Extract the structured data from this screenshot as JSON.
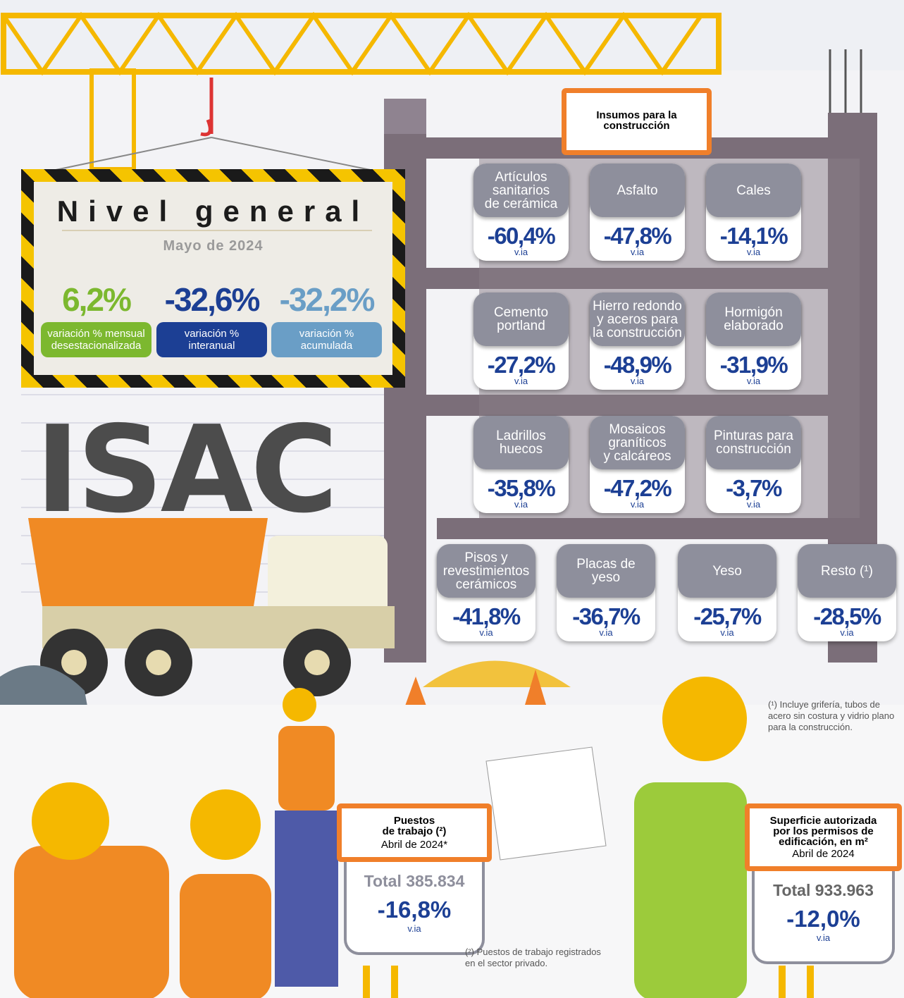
{
  "header": {
    "title": "Nivel general",
    "subtitle": "Mayo de 2024"
  },
  "indicators": [
    {
      "value": "6,2%",
      "label": [
        "variación % mensual",
        "desestacionalizada"
      ]
    },
    {
      "value": "-32,6%",
      "label": [
        "variación %",
        "interanual"
      ]
    },
    {
      "value": "-32,2%",
      "label": [
        "variación %",
        "acumulada"
      ]
    }
  ],
  "logo": "ISAC",
  "inputs": {
    "title": [
      "Insumos para la",
      "construcción"
    ],
    "items": [
      {
        "name": [
          "Artículos",
          "sanitarios",
          "de cerámica"
        ],
        "value": "-60,4%",
        "unit": "v.ia"
      },
      {
        "name": [
          "Asfalto"
        ],
        "value": "-47,8%",
        "unit": "v.ia"
      },
      {
        "name": [
          "Cales"
        ],
        "value": "-14,1%",
        "unit": "v.ia"
      },
      {
        "name": [
          "Cemento",
          "portland"
        ],
        "value": "-27,2%",
        "unit": "v.ia"
      },
      {
        "name": [
          "Hierro redondo",
          "y aceros para",
          "la construcción"
        ],
        "value": "-48,9%",
        "unit": "v.ia"
      },
      {
        "name": [
          "Hormigón",
          "elaborado"
        ],
        "value": "-31,9%",
        "unit": "v.ia"
      },
      {
        "name": [
          "Ladrillos",
          "huecos"
        ],
        "value": "-35,8%",
        "unit": "v.ia"
      },
      {
        "name": [
          "Mosaicos",
          "graníticos",
          "y calcáreos"
        ],
        "value": "-47,2%",
        "unit": "v.ia"
      },
      {
        "name": [
          "Pinturas para",
          "construcción"
        ],
        "value": "-3,7%",
        "unit": "v.ia"
      },
      {
        "name": [
          "Pisos y",
          "revestimientos",
          "cerámicos"
        ],
        "value": "-41,8%",
        "unit": "v.ia"
      },
      {
        "name": [
          "Placas de",
          "yeso"
        ],
        "value": "-36,7%",
        "unit": "v.ia"
      },
      {
        "name": [
          "Yeso"
        ],
        "value": "-25,7%",
        "unit": "v.ia"
      },
      {
        "name": [
          "Resto (¹)"
        ],
        "value": "-28,5%",
        "unit": "v.ia"
      }
    ]
  },
  "footnote_1": [
    "(¹) Incluye grifería, tubos de",
    "acero sin costura y vidrio plano",
    "para la construcción."
  ],
  "jobs": {
    "title": [
      "Puestos",
      "de trabajo (²)"
    ],
    "date": "Abril de 2024*",
    "total": "Total 385.834",
    "change": "-16,8%",
    "unit": "v.ia"
  },
  "footnote_2": [
    "(²) Puestos de trabajo registrados",
    "en el sector privado."
  ],
  "surface": {
    "title": [
      "Superficie autorizada",
      "por los permisos de",
      "edificación, en m²"
    ],
    "date": "Abril de 2024",
    "total": "Total 933.963",
    "change": "-12,0%",
    "unit": "v.ia"
  }
}
